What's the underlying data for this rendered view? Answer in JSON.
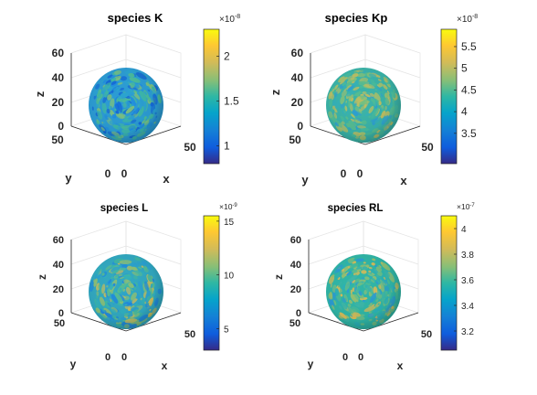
{
  "chart_data": [
    {
      "type": "heatmap",
      "title": "species K",
      "xlabel": "x",
      "ylabel": "y",
      "zlabel": "z",
      "xticks": [
        "0",
        "50"
      ],
      "yticks": [
        "0",
        "50"
      ],
      "zticks": [
        "0",
        "20",
        "40",
        "60"
      ],
      "colorbar": {
        "min": 0.8,
        "max": 2.3,
        "ticks": [
          1,
          1.5,
          2
        ],
        "tick_labels": [
          "1",
          "1.5",
          "2"
        ],
        "exponent_base": "×10",
        "exponent": "-8"
      },
      "colormap": "parula"
    },
    {
      "type": "heatmap",
      "title": "species Kp",
      "xlabel": "x",
      "ylabel": "y",
      "zlabel": "z",
      "xticks": [
        "0",
        "50"
      ],
      "yticks": [
        "0",
        "50"
      ],
      "zticks": [
        "0",
        "20",
        "40",
        "60"
      ],
      "colorbar": {
        "min": 2.8,
        "max": 5.9,
        "ticks": [
          3.5,
          4,
          4.5,
          5,
          5.5
        ],
        "tick_labels": [
          "3.5",
          "4",
          "4.5",
          "5",
          "5.5"
        ],
        "exponent_base": "×10",
        "exponent": "-8"
      },
      "colormap": "parula"
    },
    {
      "type": "heatmap",
      "title": "species L",
      "xlabel": "x",
      "ylabel": "y",
      "zlabel": "z",
      "xticks": [
        "0",
        "50"
      ],
      "yticks": [
        "0",
        "50"
      ],
      "zticks": [
        "0",
        "20",
        "40",
        "60"
      ],
      "colorbar": {
        "min": 3,
        "max": 15.5,
        "ticks": [
          5,
          10,
          15
        ],
        "tick_labels": [
          "5",
          "10",
          "15"
        ],
        "exponent_base": "×10",
        "exponent": "-9"
      },
      "colormap": "parula"
    },
    {
      "type": "heatmap",
      "title": "species RL",
      "xlabel": "x",
      "ylabel": "y",
      "zlabel": "z",
      "xticks": [
        "0",
        "50"
      ],
      "yticks": [
        "0",
        "50"
      ],
      "zticks": [
        "0",
        "20",
        "40",
        "60"
      ],
      "colorbar": {
        "min": 3.05,
        "max": 4.1,
        "ticks": [
          3.2,
          3.4,
          3.6,
          3.8,
          4
        ],
        "tick_labels": [
          "3.2",
          "3.4",
          "3.6",
          "3.8",
          "4"
        ],
        "exponent_base": "×10",
        "exponent": "-7"
      },
      "colormap": "parula"
    }
  ]
}
